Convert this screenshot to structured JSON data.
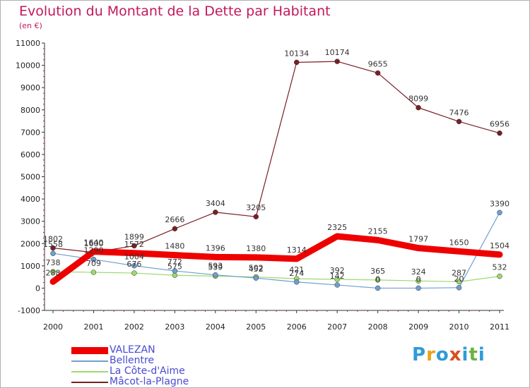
{
  "header": {
    "title": "Evolution du Montant de la Dette par Habitant",
    "unit": "(en €)"
  },
  "logo": {
    "text": "Proxiti",
    "letters": [
      "P",
      "r",
      "o",
      "x",
      "i",
      "t",
      "i"
    ],
    "colors": [
      "#2f9bd6",
      "#e8a317",
      "#2f9bd6",
      "#d94e1f",
      "#2f9bd6",
      "#6cb33f",
      "#2f9bd6"
    ]
  },
  "chart_data": {
    "type": "line",
    "title": "Evolution du Montant de la Dette par Habitant",
    "ylabel": "(en €)",
    "xlabel": "",
    "ylim": [
      -1000,
      11000
    ],
    "yticks": [
      -1000,
      0,
      1000,
      2000,
      3000,
      4000,
      5000,
      6000,
      7000,
      8000,
      9000,
      10000,
      11000
    ],
    "x": [
      "2000",
      "2001",
      "2002",
      "2003",
      "2004",
      "2005",
      "2006",
      "2007",
      "2008",
      "2009",
      "2010",
      "2011"
    ],
    "grid": false,
    "legend": "bottom-left",
    "series": [
      {
        "name": "VALEZAN",
        "color": "#ee0000",
        "values": [
          288,
          1640,
          1572,
          1480,
          1396,
          1380,
          1314,
          2325,
          2155,
          1797,
          1650,
          1504
        ]
      },
      {
        "name": "Bellentre",
        "color": "#6f9fd0",
        "values": [
          1558,
          1290,
          1004,
          772,
          593,
          452,
          274,
          142,
          0,
          0,
          20,
          3390
        ]
      },
      {
        "name": "La Côte-d'Aime",
        "color": "#9ed870",
        "values": [
          738,
          709,
          676,
          575,
          539,
          502,
          421,
          392,
          365,
          324,
          287,
          532
        ]
      },
      {
        "name": "Mâcot-la-Plagne",
        "color": "#7a1f24",
        "values": [
          1802,
          1600,
          1899,
          2666,
          3404,
          3205,
          10134,
          10174,
          9655,
          8099,
          7476,
          6956
        ]
      }
    ]
  }
}
